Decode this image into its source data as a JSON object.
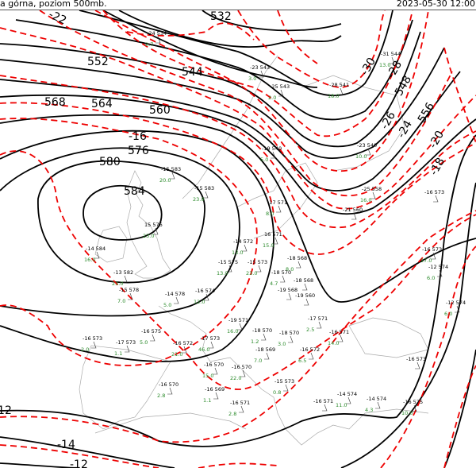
{
  "header": {
    "title": "a górna, poziom 500mb.",
    "datetime": "2023-05-30 12:00"
  },
  "colors": {
    "geopotential_isolines": "#000000",
    "temperature_isolines": "#e00000",
    "coastlines": "#aaaaaa",
    "station_secondary": "#2a8a2a"
  },
  "geopotential_labels": [
    "532",
    "544",
    "552",
    "564",
    "568",
    "560",
    "576",
    "580",
    "584",
    "548",
    "556"
  ],
  "temperature_labels": [
    "-22",
    "-30",
    "-28",
    "-26",
    "-24",
    "-20",
    "-18",
    "-16",
    "-14",
    "-12",
    "-12"
  ],
  "stations": [
    {
      "t": "-24",
      "z": "534",
      "g": "2.7"
    },
    {
      "t": "-23",
      "z": "543",
      "g": "3.0"
    },
    {
      "t": "-25",
      "z": "543",
      "g": "2.0"
    },
    {
      "t": "-28",
      "z": "541",
      "g": "18.0"
    },
    {
      "t": "-31",
      "z": "544",
      "g": "13.0"
    },
    {
      "t": "-23",
      "z": "540",
      "g": "10.0"
    },
    {
      "t": "-25",
      "z": "558",
      "g": "16.0"
    },
    {
      "t": "-21",
      "z": "560",
      "g": ""
    },
    {
      "t": "-16",
      "z": "573",
      "g": ""
    },
    {
      "t": "-19",
      "z": "540",
      "g": "5.0"
    },
    {
      "t": "-15",
      "z": "583",
      "g": "20.0"
    },
    {
      "t": "-15",
      "z": "583",
      "g": "23.0"
    },
    {
      "t": "15",
      "z": "576",
      "g": "23.0"
    },
    {
      "t": "-14",
      "z": "584",
      "g": "16.0"
    },
    {
      "t": "-13",
      "z": "582",
      "g": "23.0"
    },
    {
      "t": "-15",
      "z": "578",
      "g": "7.0"
    },
    {
      "t": "-14",
      "z": "578",
      "g": "5.0"
    },
    {
      "t": "-17",
      "z": "571",
      "g": "8.0"
    },
    {
      "t": "16",
      "z": "571",
      "g": "15.0"
    },
    {
      "t": "-14",
      "z": "572",
      "g": "13.0"
    },
    {
      "t": "-18",
      "z": "568",
      "g": "8.0"
    },
    {
      "t": "-18",
      "z": "570",
      "g": "4.7"
    },
    {
      "t": "-19",
      "z": "568",
      "g": ""
    },
    {
      "t": "-18",
      "z": "568",
      "g": ""
    },
    {
      "t": "-19",
      "z": "560",
      "g": ""
    },
    {
      "t": "-15",
      "z": "573",
      "g": "23.0"
    },
    {
      "t": "-15",
      "z": "575",
      "g": "13.0"
    },
    {
      "t": "-16",
      "z": "574",
      "g": "12.0"
    },
    {
      "t": "-16",
      "z": "573",
      "g": "2.0"
    },
    {
      "t": "-17",
      "z": "573",
      "g": "1.1"
    },
    {
      "t": "-16",
      "z": "575",
      "g": "5.0"
    },
    {
      "t": "-16",
      "z": "572",
      "g": "21.0"
    },
    {
      "t": "-17",
      "z": "573",
      "g": "46.0"
    },
    {
      "t": "-16",
      "z": "570",
      "g": "15.0"
    },
    {
      "t": "-16",
      "z": "570",
      "g": "22.0"
    },
    {
      "t": "-16",
      "z": "569",
      "g": "1.1"
    },
    {
      "t": "-16",
      "z": "571",
      "g": "2.8"
    },
    {
      "t": "-16",
      "z": "570",
      "g": "2.8"
    },
    {
      "t": "-15",
      "z": "573",
      "g": "0.8"
    },
    {
      "t": "-18",
      "z": "569",
      "g": "7.0"
    },
    {
      "t": "-19",
      "z": "571",
      "g": "16.0"
    },
    {
      "t": "-18",
      "z": "570",
      "g": "1.2"
    },
    {
      "t": "-17",
      "z": "571",
      "g": "2.5"
    },
    {
      "t": "-18",
      "z": "570",
      "g": "3.0"
    },
    {
      "t": "-16",
      "z": "572",
      "g": "6.5"
    },
    {
      "t": "-16",
      "z": "571",
      "g": "14.0"
    },
    {
      "t": "-16",
      "z": "573",
      "g": ""
    },
    {
      "t": "-14",
      "z": "574",
      "g": "11.0"
    },
    {
      "t": "-14",
      "z": "574",
      "g": "4.3"
    },
    {
      "t": "-16",
      "z": "575",
      "g": "10.0"
    },
    {
      "t": "-16",
      "z": "571",
      "g": ""
    },
    {
      "t": "-12",
      "z": "574",
      "g": "6.0"
    },
    {
      "t": "-16",
      "z": "573",
      "g": "17.0"
    },
    {
      "t": "-12",
      "z": "574",
      "g": "6.0"
    }
  ]
}
